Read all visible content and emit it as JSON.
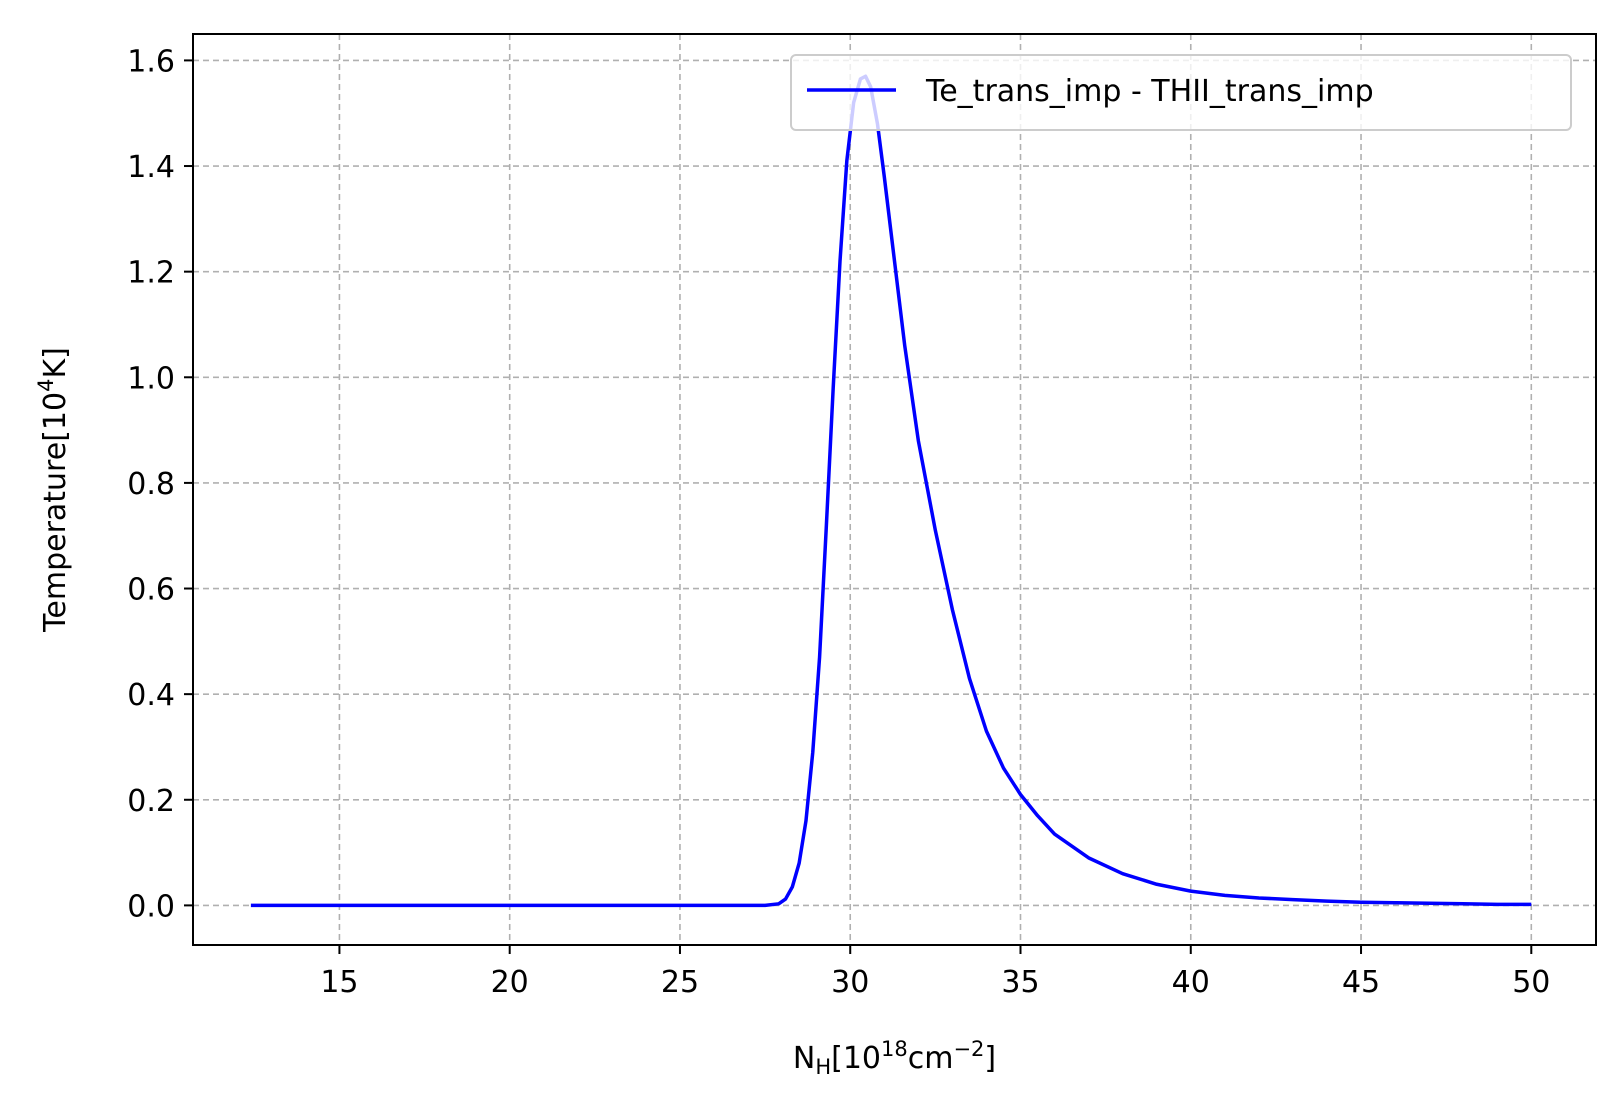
{
  "chart_data": {
    "type": "line",
    "title": "",
    "xlabel": {
      "base": "N",
      "sub": "H",
      "bracket_open": "[10",
      "sup": "18",
      "unit": "cm",
      "unit_sup": "−2",
      "bracket_close": "]"
    },
    "ylabel": {
      "prefix": "Temperature[10",
      "sup": "4",
      "suffix": "K]"
    },
    "xlim": [
      10.7,
      51.9
    ],
    "ylim": [
      -0.075,
      1.65
    ],
    "xticks": [
      15,
      20,
      25,
      30,
      35,
      40,
      45,
      50
    ],
    "yticks": [
      0.0,
      0.2,
      0.4,
      0.6,
      0.8,
      1.0,
      1.2,
      1.4,
      1.6
    ],
    "ytick_labels": [
      "0.0",
      "0.2",
      "0.4",
      "0.6",
      "0.8",
      "1.0",
      "1.2",
      "1.4",
      "1.6"
    ],
    "grid": true,
    "legend_position": "upper right",
    "series": [
      {
        "name": "Te_trans_imp - THII_trans_imp",
        "color": "#0000ff",
        "x": [
          12.4,
          15,
          20,
          25,
          27.5,
          27.9,
          28.1,
          28.3,
          28.5,
          28.7,
          28.9,
          29.1,
          29.3,
          29.5,
          29.7,
          29.9,
          30.1,
          30.3,
          30.45,
          30.6,
          30.8,
          31.0,
          31.3,
          31.6,
          32.0,
          32.5,
          33.0,
          33.5,
          34.0,
          34.5,
          35.0,
          35.5,
          36.0,
          37.0,
          38.0,
          39.0,
          40.0,
          41.0,
          42.0,
          43.0,
          44.0,
          45.0,
          46.0,
          47.0,
          48.0,
          49.0,
          50.0
        ],
        "y": [
          0.0,
          0.0,
          0.0,
          0.0,
          0.0,
          0.003,
          0.012,
          0.035,
          0.08,
          0.16,
          0.29,
          0.47,
          0.72,
          0.98,
          1.22,
          1.41,
          1.52,
          1.565,
          1.57,
          1.55,
          1.48,
          1.38,
          1.22,
          1.06,
          0.88,
          0.71,
          0.56,
          0.43,
          0.33,
          0.26,
          0.21,
          0.17,
          0.135,
          0.09,
          0.06,
          0.04,
          0.027,
          0.019,
          0.014,
          0.011,
          0.008,
          0.006,
          0.005,
          0.004,
          0.003,
          0.002,
          0.002
        ]
      }
    ]
  }
}
